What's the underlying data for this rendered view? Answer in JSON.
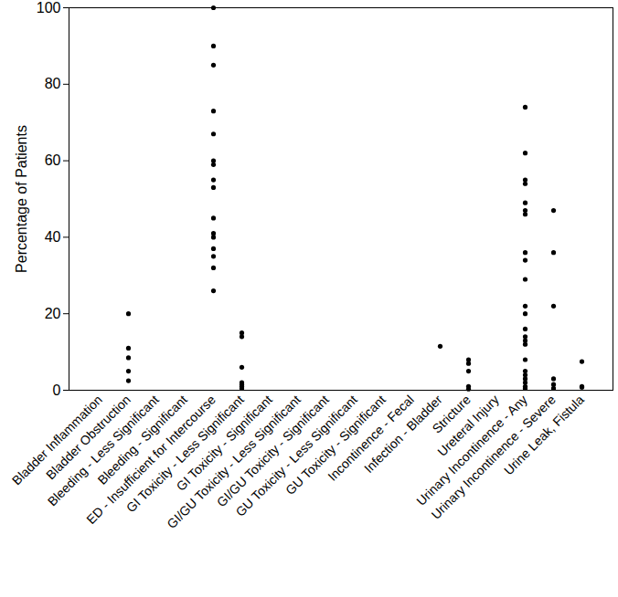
{
  "chart_data": {
    "type": "scatter",
    "y_label": "Percentage of Patients",
    "categories": [
      "Bladder Inflammation",
      "Bladder Obstruction",
      "Bleeding - Less Significant",
      "Bleeding - Significant",
      "ED - Insufficient for Intercourse",
      "GI Toxicity - Less Significant",
      "GI Toxicity - Significant",
      "GI/GU Toxicity - Less Significant",
      "GI/GU Toxicity - Significant",
      "GU Toxicity - Less Significant",
      "GU Toxicity - Significant",
      "Incontinence - Fecal",
      "Infection - Bladder",
      "Stricture",
      "Ureteral Injury",
      "Urinary Incontinence - Any",
      "Urinary Incontinence - Severe",
      "Urine Leak, Fistula"
    ],
    "values": [
      [],
      [
        20,
        11,
        8.5,
        5,
        2.5
      ],
      [],
      [],
      [
        100,
        90,
        85,
        73,
        67,
        60,
        59,
        55,
        53,
        45,
        41,
        40,
        37,
        35,
        32,
        26
      ],
      [
        15,
        14,
        6,
        2,
        1.5,
        1,
        0.5
      ],
      [],
      [],
      [],
      [],
      [],
      [],
      [
        11.5
      ],
      [
        8,
        7,
        5,
        1,
        0.3
      ],
      [],
      [
        74,
        62,
        55,
        54,
        49,
        47,
        46,
        36,
        34,
        29,
        22,
        20,
        16,
        14,
        13,
        12,
        8,
        5,
        4,
        3,
        2,
        1,
        0.5
      ],
      [
        47,
        36,
        22,
        3,
        1.5,
        0.5
      ],
      [
        7.5,
        1,
        0.8
      ]
    ],
    "color": "#000000",
    "marker": "circle",
    "ylim": [
      0,
      100
    ],
    "yticks": [
      0,
      20,
      40,
      60,
      80,
      100
    ],
    "grid": false
  }
}
